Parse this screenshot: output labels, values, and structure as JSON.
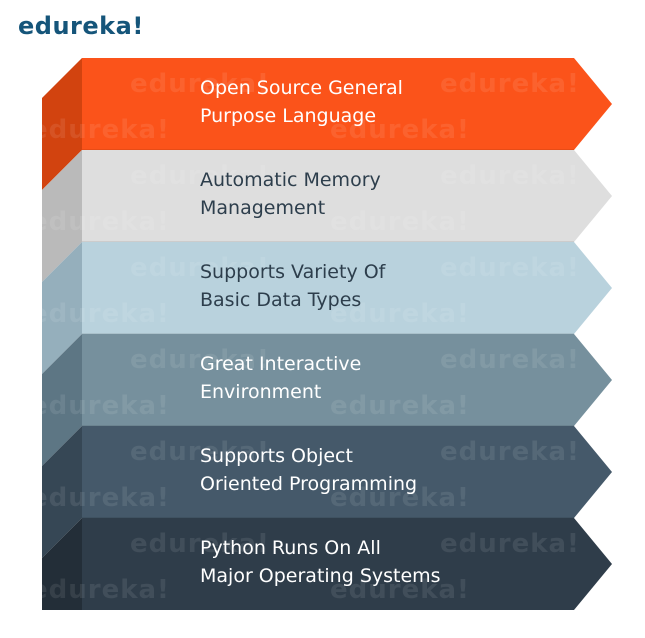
{
  "brand": {
    "logo": "edureka!",
    "logo_color": "#15557a",
    "watermark": "edureka!"
  },
  "bands": [
    {
      "line1": "Open Source General",
      "line2": "Purpose Language",
      "color": "#fb531a",
      "side": "#d2430f",
      "text_color": "#ffffff"
    },
    {
      "line1": "Automatic Memory",
      "line2": "Management",
      "color": "#dedede",
      "side": "#bababa",
      "text_color": "#2d3e4c"
    },
    {
      "line1": "Supports Variety Of",
      "line2": "Basic Data Types",
      "color": "#b9d2dd",
      "side": "#95afbc",
      "text_color": "#2d3e4c"
    },
    {
      "line1": "Great Interactive",
      "line2": "Environment",
      "color": "#76909d",
      "side": "#5d7684",
      "text_color": "#ffffff"
    },
    {
      "line1": "Supports Object",
      "line2": "Oriented Programming",
      "color": "#45596a",
      "side": "#364755",
      "text_color": "#ffffff"
    },
    {
      "line1": "Python Runs On All",
      "line2": "Major Operating Systems",
      "color": "#2f3d4a",
      "side": "#232e38",
      "text_color": "#ffffff"
    }
  ]
}
